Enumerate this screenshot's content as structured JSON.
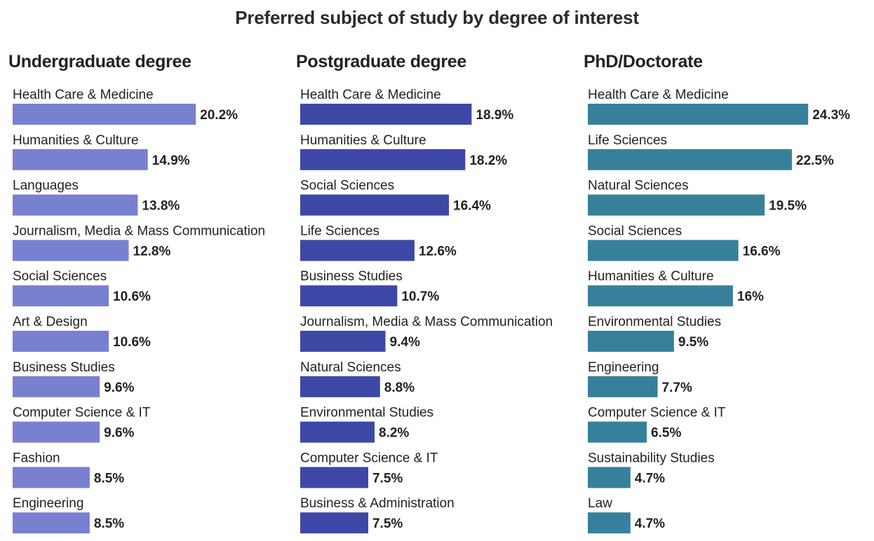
{
  "title": "Preferred subject of study by degree of interest",
  "chart_data": [
    {
      "type": "bar",
      "orientation": "horizontal",
      "title": "Undergraduate degree",
      "color": "#7880d0",
      "value_suffix": "%",
      "categories": [
        "Health Care & Medicine",
        "Humanities & Culture",
        "Languages",
        "Journalism, Media & Mass Communication",
        "Social Sciences",
        "Art & Design",
        "Business Studies",
        "Computer Science & IT",
        "Fashion",
        "Engineering"
      ],
      "values": [
        20.2,
        14.9,
        13.8,
        12.8,
        10.6,
        10.6,
        9.6,
        9.6,
        8.5,
        8.5
      ]
    },
    {
      "type": "bar",
      "orientation": "horizontal",
      "title": "Postgraduate degree",
      "color": "#3d48a6",
      "value_suffix": "%",
      "categories": [
        "Health Care & Medicine",
        "Humanities & Culture",
        "Social Sciences",
        "Life Sciences",
        "Business Studies",
        "Journalism, Media & Mass Communication",
        "Natural Sciences",
        "Environmental Studies",
        "Computer Science & IT",
        "Business & Administration"
      ],
      "values": [
        18.9,
        18.2,
        16.4,
        12.6,
        10.7,
        9.4,
        8.8,
        8.2,
        7.5,
        7.5
      ]
    },
    {
      "type": "bar",
      "orientation": "horizontal",
      "title": "PhD/Doctorate",
      "color": "#37809b",
      "value_suffix": "%",
      "categories": [
        "Health Care & Medicine",
        "Life Sciences",
        "Natural Sciences",
        "Social Sciences",
        "Humanities & Culture",
        "Environmental Studies",
        "Engineering",
        "Computer Science & IT",
        "Sustainability Studies",
        "Law"
      ],
      "values": [
        24.3,
        22.5,
        19.5,
        16.6,
        16,
        9.5,
        7.7,
        6.5,
        4.7,
        4.7
      ]
    }
  ]
}
